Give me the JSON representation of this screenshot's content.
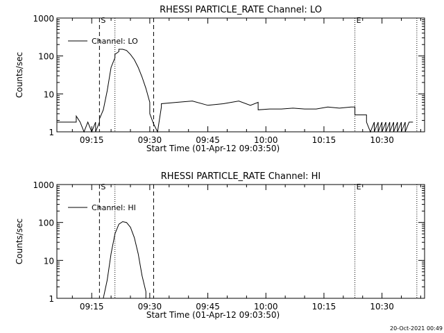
{
  "chart_data": [
    {
      "type": "line",
      "title": "RHESSI PARTICLE_RATE Channel: LO",
      "xlabel": "Start Time (01-Apr-12 09:03:50)",
      "ylabel": "Counts/sec",
      "yscale": "log",
      "ylim": [
        1,
        1000
      ],
      "xlim": [
        "09:06",
        "10:41"
      ],
      "x_ticks": [
        "09:15",
        "09:30",
        "09:45",
        "10:00",
        "10:15",
        "10:30"
      ],
      "y_ticks": [
        "1",
        "10",
        "100",
        "1000"
      ],
      "grid": false,
      "legend": {
        "position": "top-left",
        "entries": [
          "Channel: LO"
        ]
      },
      "markers": [
        {
          "label": "S",
          "time": "09:17",
          "style": "dashed"
        },
        {
          "label": "",
          "time": "09:21",
          "style": "dotted"
        },
        {
          "label": "",
          "time": "09:31",
          "style": "dashed"
        },
        {
          "label": "E",
          "time": "10:23",
          "style": "dotted"
        },
        {
          "label": "",
          "time": "10:39",
          "style": "dotted"
        }
      ],
      "series": [
        {
          "name": "Channel: LO",
          "x": [
            "09:06",
            "09:11",
            "09:11",
            "09:12",
            "09:12",
            "09:13",
            "09:13",
            "09:14",
            "09:14",
            "09:15",
            "09:15",
            "09:16",
            "09:16",
            "09:17",
            "09:17",
            "09:18",
            "09:19",
            "09:20",
            "09:21",
            "09:21",
            "09:22",
            "09:22",
            "09:23",
            "09:24",
            "09:25",
            "09:26",
            "09:27",
            "09:28",
            "09:29",
            "09:30",
            "09:30",
            "09:31",
            "09:31",
            "09:32",
            "09:32",
            "09:33",
            "09:33",
            "09:37",
            "09:41",
            "09:45",
            "09:49",
            "09:53",
            "09:56",
            "09:58",
            "09:58",
            "10:01",
            "10:04",
            "10:07",
            "10:10",
            "10:13",
            "10:16",
            "10:19",
            "10:22",
            "10:23",
            "10:23",
            "10:26",
            "10:26",
            "10:27",
            "10:28",
            "10:28",
            "10:29",
            "10:29",
            "10:30",
            "10:30",
            "10:31",
            "10:31",
            "10:32",
            "10:32",
            "10:33",
            "10:33",
            "10:34",
            "10:34",
            "10:35",
            "10:35",
            "10:36",
            "10:36",
            "10:37",
            "10:37",
            "10:38"
          ],
          "values": [
            1.8,
            1.8,
            2.6,
            1.8,
            1.8,
            1.0,
            1.0,
            1.8,
            1.8,
            1.0,
            1.0,
            1.8,
            1.0,
            1.8,
            2.2,
            3.8,
            12,
            50,
            90,
            110,
            130,
            150,
            150,
            140,
            110,
            80,
            50,
            28,
            14,
            6,
            3,
            1.6,
            1.6,
            1.0,
            1.0,
            4.5,
            5.5,
            6.0,
            6.5,
            5.0,
            5.5,
            6.5,
            5.0,
            6.0,
            3.8,
            4.0,
            4.0,
            4.2,
            4.0,
            4.0,
            4.5,
            4.2,
            4.5,
            4.5,
            2.8,
            2.8,
            1.8,
            1.0,
            1.8,
            1.0,
            1.8,
            1.0,
            1.8,
            1.0,
            1.8,
            1.0,
            1.8,
            1.0,
            1.8,
            1.0,
            1.8,
            1.0,
            1.8,
            1.0,
            1.8,
            1.0,
            1.8,
            1.8,
            1.8
          ]
        }
      ]
    },
    {
      "type": "line",
      "title": "RHESSI PARTICLE_RATE Channel: HI",
      "xlabel": "Start Time (01-Apr-12 09:03:50)",
      "ylabel": "Counts/sec",
      "yscale": "log",
      "ylim": [
        1,
        1000
      ],
      "xlim": [
        "09:06",
        "10:41"
      ],
      "x_ticks": [
        "09:15",
        "09:30",
        "09:45",
        "10:00",
        "10:15",
        "10:30"
      ],
      "y_ticks": [
        "1",
        "10",
        "100",
        "1000"
      ],
      "grid": false,
      "legend": {
        "position": "top-left",
        "entries": [
          "Channel: HI"
        ]
      },
      "markers": [
        {
          "label": "S",
          "time": "09:17",
          "style": "dashed"
        },
        {
          "label": "",
          "time": "09:21",
          "style": "dotted"
        },
        {
          "label": "",
          "time": "09:31",
          "style": "dashed"
        },
        {
          "label": "E",
          "time": "10:23",
          "style": "dotted"
        },
        {
          "label": "",
          "time": "10:39",
          "style": "dotted"
        }
      ],
      "series": [
        {
          "name": "Channel: HI",
          "x": [
            "09:18",
            "09:19",
            "09:20",
            "09:21",
            "09:22",
            "09:23",
            "09:24",
            "09:25",
            "09:26",
            "09:27",
            "09:28",
            "09:29",
            "09:29"
          ],
          "values": [
            1.0,
            3,
            15,
            50,
            90,
            105,
            100,
            75,
            40,
            15,
            4,
            1.5,
            1.0
          ]
        }
      ]
    }
  ],
  "footer": {
    "timestamp": "20-Oct-2021 00:49"
  }
}
